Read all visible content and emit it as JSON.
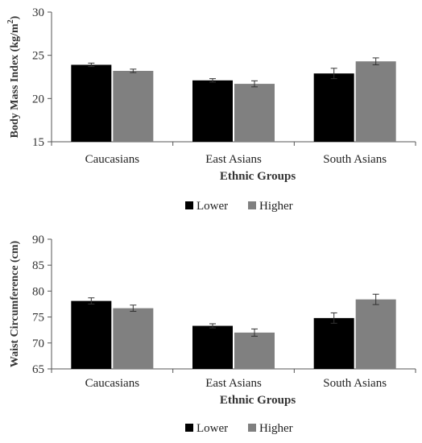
{
  "chart_data": [
    {
      "type": "bar",
      "categories": [
        "Caucasians",
        "East Asians",
        "South Asians"
      ],
      "series": [
        {
          "name": "Lower",
          "values": [
            23.9,
            22.1,
            22.9
          ],
          "errors": [
            0.2,
            0.2,
            0.6
          ],
          "color": "#000000"
        },
        {
          "name": "Higher",
          "values": [
            23.2,
            21.7,
            24.3
          ],
          "errors": [
            0.2,
            0.35,
            0.4
          ],
          "color": "#808080"
        }
      ],
      "xlabel": "Ethnic Groups",
      "ylabel": "Body Mass Index (kg/m²)",
      "ylabel_main": "Body Mass Index (kg/m",
      "ylabel_sup": "2",
      "ylabel_close": ")",
      "ylim": [
        15,
        30
      ],
      "yticks": [
        15,
        20,
        25,
        30
      ],
      "ytick_labels": [
        "15",
        "20",
        "25",
        "30"
      ],
      "legend_position": "bottom-center",
      "grid": false
    },
    {
      "type": "bar",
      "categories": [
        "Caucasians",
        "East Asians",
        "South Asians"
      ],
      "series": [
        {
          "name": "Lower",
          "values": [
            78.1,
            73.3,
            74.8
          ],
          "errors": [
            0.6,
            0.4,
            1.0
          ],
          "color": "#000000"
        },
        {
          "name": "Higher",
          "values": [
            76.7,
            72.0,
            78.4
          ],
          "errors": [
            0.6,
            0.7,
            1.0
          ],
          "color": "#808080"
        }
      ],
      "xlabel": "Ethnic Groups",
      "ylabel": "Waist Circumference (cm)",
      "ylim": [
        65,
        90
      ],
      "yticks": [
        65,
        70,
        75,
        80,
        85,
        90
      ],
      "ytick_labels": [
        "65",
        "70",
        "75",
        "80",
        "85",
        "90"
      ],
      "legend_position": "bottom-center",
      "grid": false
    }
  ]
}
